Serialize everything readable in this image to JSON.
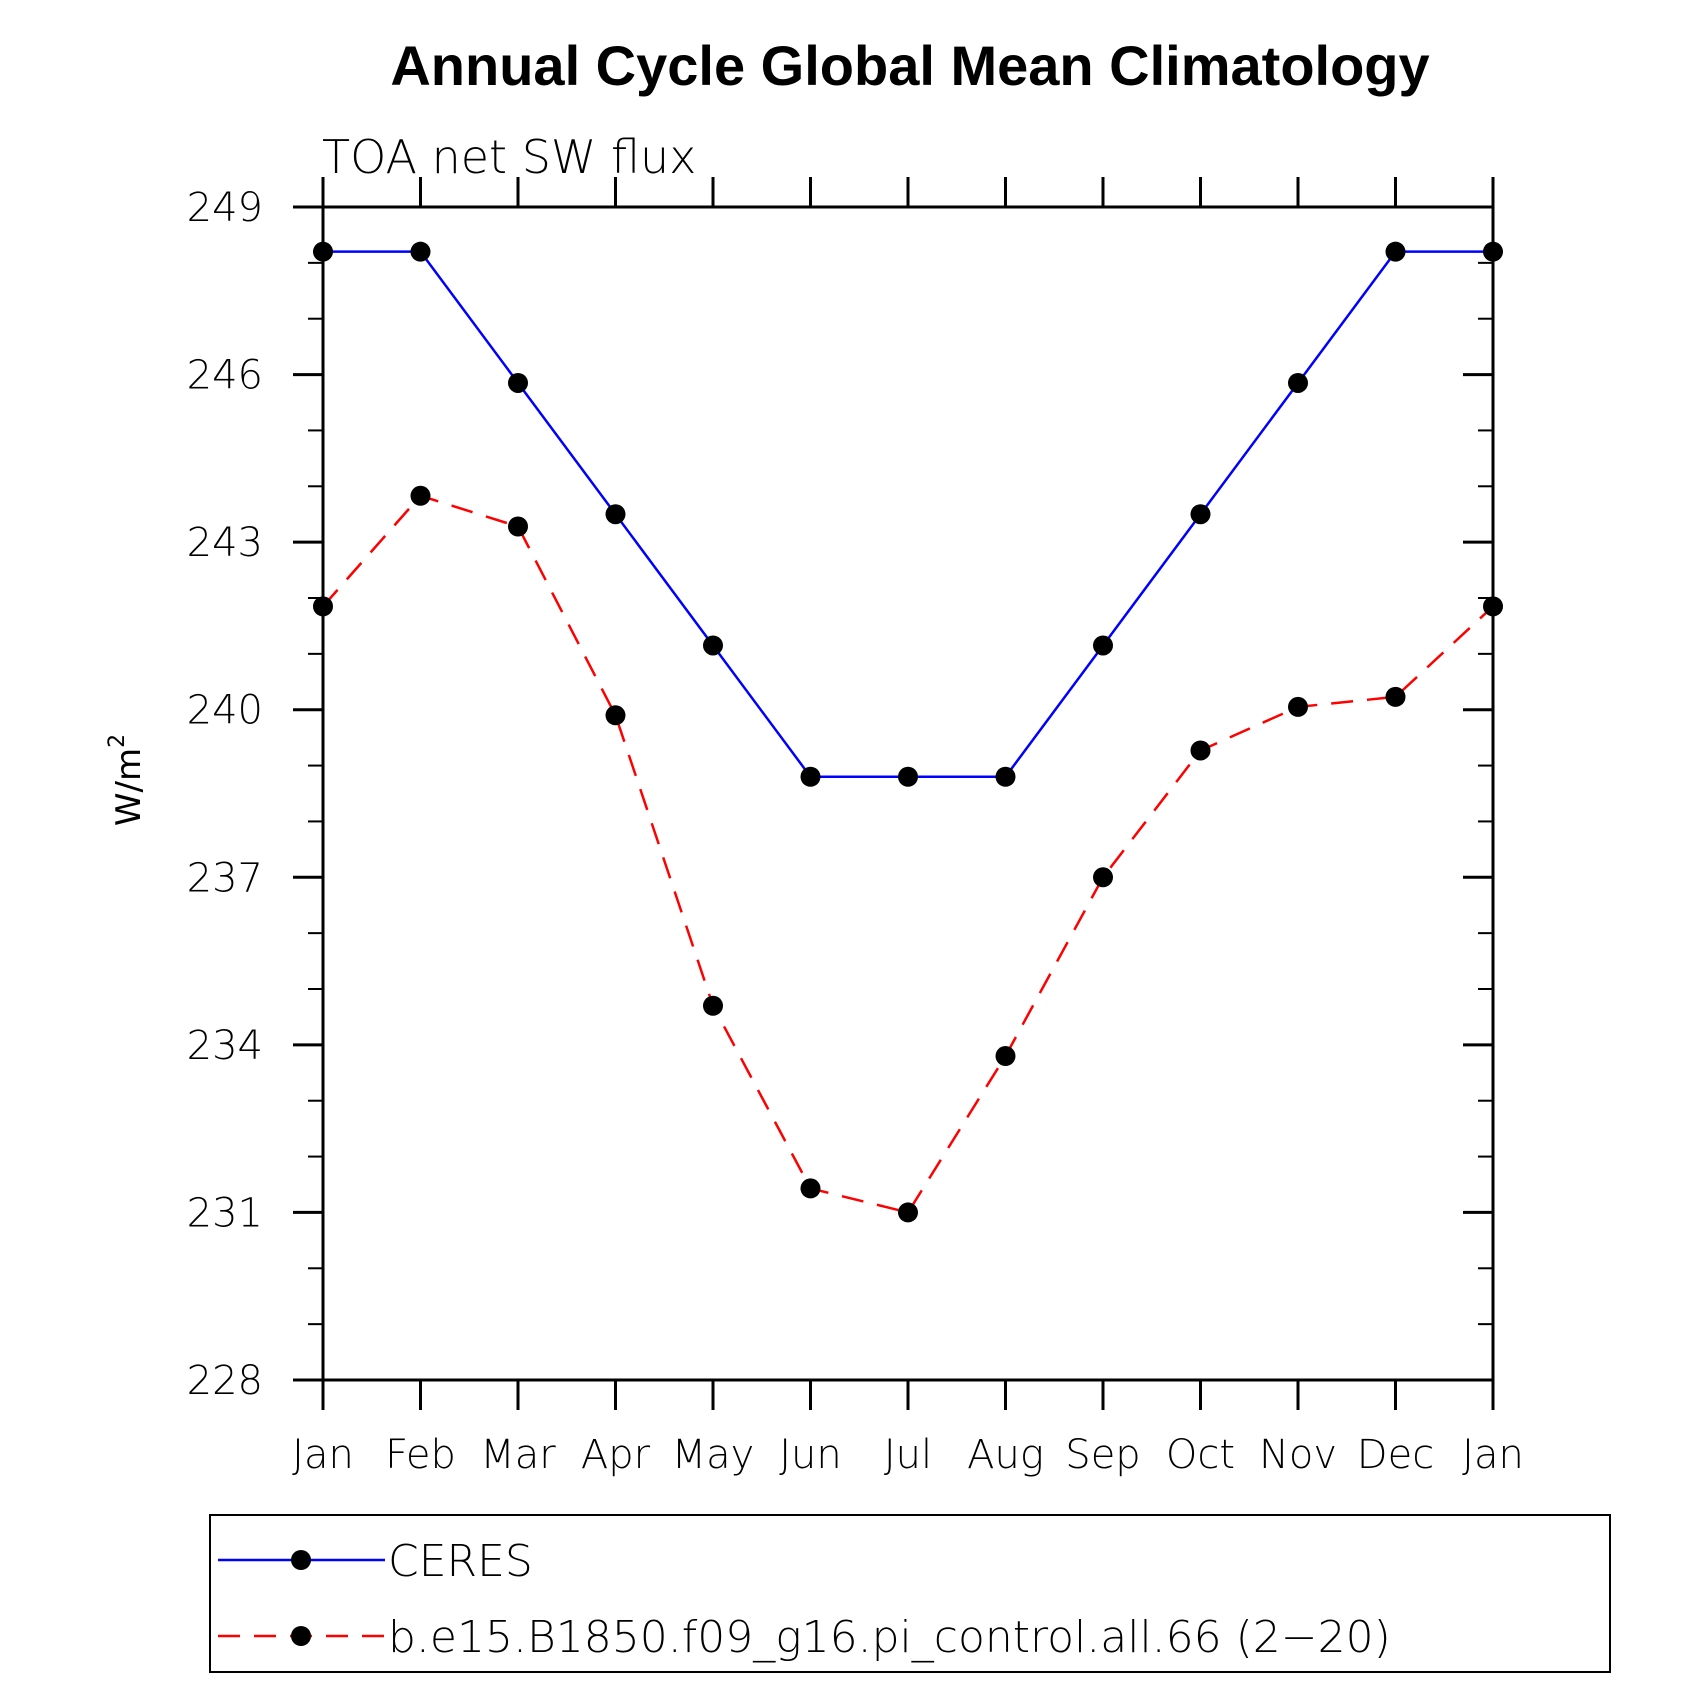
{
  "chart_data": {
    "type": "line",
    "title": "Annual Cycle Global Mean Climatology",
    "subtitle": "TOA net SW flux",
    "ylabel": "W/m",
    "ylabel_superscript": "2",
    "categories": [
      "Jan",
      "Feb",
      "Mar",
      "Apr",
      "May",
      "Jun",
      "Jul",
      "Aug",
      "Sep",
      "Oct",
      "Nov",
      "Dec",
      "Jan"
    ],
    "ylim": [
      228,
      249
    ],
    "yticks": [
      228,
      231,
      234,
      237,
      240,
      243,
      246,
      249
    ],
    "yticks_labels": [
      "228",
      "231",
      "234",
      "237",
      "240",
      "243",
      "246",
      "249"
    ],
    "series": [
      {
        "name": "CERES",
        "color": "#0000ff",
        "dash": "solid",
        "values": [
          248.2,
          248.2,
          245.85,
          243.5,
          241.15,
          238.8,
          238.8,
          238.8,
          241.15,
          243.5,
          245.85,
          248.2,
          248.2
        ]
      },
      {
        "name": "b.e15.B1850.f09_g16.pi_control.all.66 (2−20)",
        "color": "#ff0000",
        "dash": "dashed",
        "values": [
          241.85,
          243.83,
          243.28,
          239.9,
          234.7,
          231.43,
          231.0,
          233.8,
          237.0,
          239.27,
          240.05,
          240.23,
          241.85
        ]
      }
    ],
    "legend_position": "bottom"
  }
}
